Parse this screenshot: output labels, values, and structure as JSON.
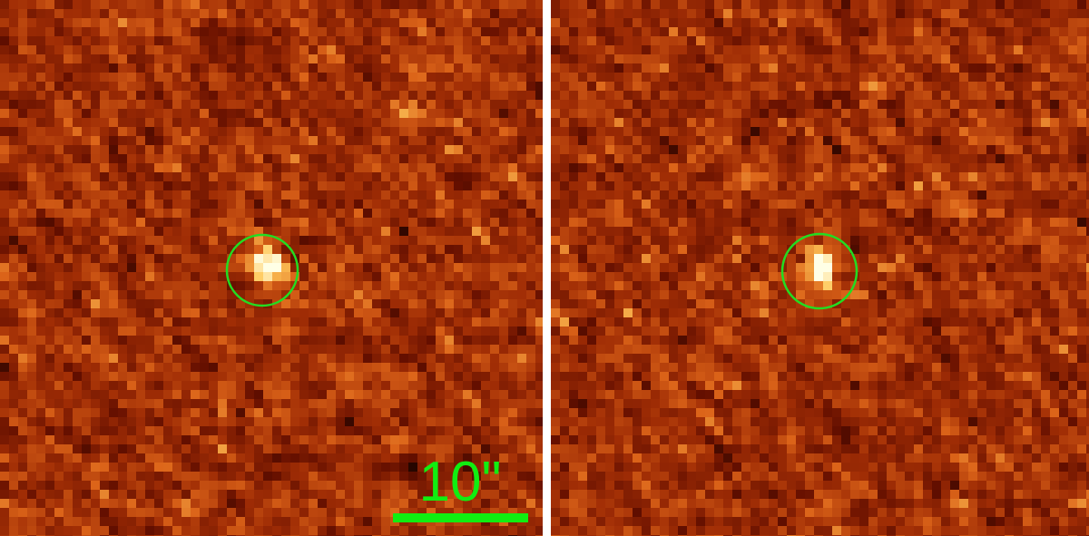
{
  "scale_bar": {
    "label": "10\""
  }
}
